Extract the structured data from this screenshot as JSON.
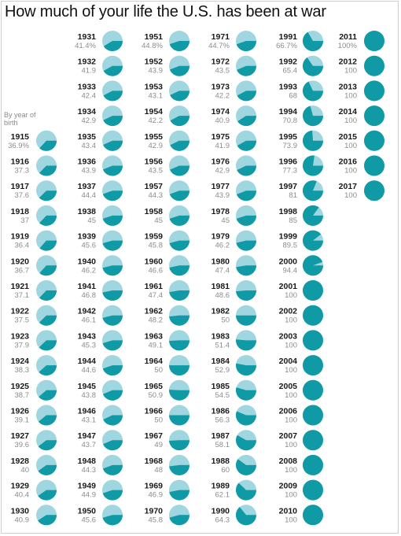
{
  "title": "How much of your life the U.S. has been at war",
  "note": "By year of birth",
  "colors": {
    "war": "#0f9aa5",
    "peace": "#9fd6e0"
  },
  "chart_data": {
    "type": "pie-grid",
    "title": "How much of your life the U.S. has been at war",
    "note": "By year of birth",
    "columns": [
      [
        {
          "year": "1915",
          "label": "36.9%",
          "value": 36.9
        },
        {
          "year": "1916",
          "label": "37.3",
          "value": 37.3
        },
        {
          "year": "1917",
          "label": "37.6",
          "value": 37.6
        },
        {
          "year": "1918",
          "label": "37",
          "value": 37
        },
        {
          "year": "1919",
          "label": "36.4",
          "value": 36.4
        },
        {
          "year": "1920",
          "label": "36.7",
          "value": 36.7
        },
        {
          "year": "1921",
          "label": "37.1",
          "value": 37.1
        },
        {
          "year": "1922",
          "label": "37.5",
          "value": 37.5
        },
        {
          "year": "1923",
          "label": "37.9",
          "value": 37.9
        },
        {
          "year": "1924",
          "label": "38.3",
          "value": 38.3
        },
        {
          "year": "1925",
          "label": "38.7",
          "value": 38.7
        },
        {
          "year": "1926",
          "label": "39.1",
          "value": 39.1
        },
        {
          "year": "1927",
          "label": "39.6",
          "value": 39.6
        },
        {
          "year": "1928",
          "label": "40",
          "value": 40
        },
        {
          "year": "1929",
          "label": "40.4",
          "value": 40.4
        },
        {
          "year": "1930",
          "label": "40.9",
          "value": 40.9
        }
      ],
      [
        {
          "year": "1931",
          "label": "41.4%",
          "value": 41.4
        },
        {
          "year": "1932",
          "label": "41.9",
          "value": 41.9
        },
        {
          "year": "1933",
          "label": "42.4",
          "value": 42.4
        },
        {
          "year": "1934",
          "label": "42.9",
          "value": 42.9
        },
        {
          "year": "1935",
          "label": "43.4",
          "value": 43.4
        },
        {
          "year": "1936",
          "label": "43.9",
          "value": 43.9
        },
        {
          "year": "1937",
          "label": "44.4",
          "value": 44.4
        },
        {
          "year": "1938",
          "label": "45",
          "value": 45
        },
        {
          "year": "1939",
          "label": "45.6",
          "value": 45.6
        },
        {
          "year": "1940",
          "label": "46.2",
          "value": 46.2
        },
        {
          "year": "1941",
          "label": "46.8",
          "value": 46.8
        },
        {
          "year": "1942",
          "label": "46.1",
          "value": 46.1
        },
        {
          "year": "1943",
          "label": "45.3",
          "value": 45.3
        },
        {
          "year": "1944",
          "label": "44.6",
          "value": 44.6
        },
        {
          "year": "1945",
          "label": "43.8",
          "value": 43.8
        },
        {
          "year": "1946",
          "label": "43.1",
          "value": 43.1
        },
        {
          "year": "1947",
          "label": "43.7",
          "value": 43.7
        },
        {
          "year": "1948",
          "label": "44.3",
          "value": 44.3
        },
        {
          "year": "1949",
          "label": "44.9",
          "value": 44.9
        },
        {
          "year": "1950",
          "label": "45.6",
          "value": 45.6
        }
      ],
      [
        {
          "year": "1951",
          "label": "44.8%",
          "value": 44.8
        },
        {
          "year": "1952",
          "label": "43.9",
          "value": 43.9
        },
        {
          "year": "1953",
          "label": "43.1",
          "value": 43.1
        },
        {
          "year": "1954",
          "label": "42.2",
          "value": 42.2
        },
        {
          "year": "1955",
          "label": "42.9",
          "value": 42.9
        },
        {
          "year": "1956",
          "label": "43.5",
          "value": 43.5
        },
        {
          "year": "1957",
          "label": "44.3",
          "value": 44.3
        },
        {
          "year": "1958",
          "label": "45",
          "value": 45
        },
        {
          "year": "1959",
          "label": "45.8",
          "value": 45.8
        },
        {
          "year": "1960",
          "label": "46.6",
          "value": 46.6
        },
        {
          "year": "1961",
          "label": "47.4",
          "value": 47.4
        },
        {
          "year": "1962",
          "label": "48.2",
          "value": 48.2
        },
        {
          "year": "1963",
          "label": "49.1",
          "value": 49.1
        },
        {
          "year": "1964",
          "label": "50",
          "value": 50
        },
        {
          "year": "1965",
          "label": "50.9",
          "value": 50.9
        },
        {
          "year": "1966",
          "label": "50",
          "value": 50
        },
        {
          "year": "1967",
          "label": "49",
          "value": 49
        },
        {
          "year": "1968",
          "label": "48",
          "value": 48
        },
        {
          "year": "1969",
          "label": "46.9",
          "value": 46.9
        },
        {
          "year": "1970",
          "label": "45.8",
          "value": 45.8
        }
      ],
      [
        {
          "year": "1971",
          "label": "44.7%",
          "value": 44.7
        },
        {
          "year": "1972",
          "label": "43.5",
          "value": 43.5
        },
        {
          "year": "1973",
          "label": "42.2",
          "value": 42.2
        },
        {
          "year": "1974",
          "label": "40.9",
          "value": 40.9
        },
        {
          "year": "1975",
          "label": "41.9",
          "value": 41.9
        },
        {
          "year": "1976",
          "label": "42.9",
          "value": 42.9
        },
        {
          "year": "1977",
          "label": "43.9",
          "value": 43.9
        },
        {
          "year": "1978",
          "label": "45",
          "value": 45
        },
        {
          "year": "1979",
          "label": "46.2",
          "value": 46.2
        },
        {
          "year": "1980",
          "label": "47.4",
          "value": 47.4
        },
        {
          "year": "1981",
          "label": "48.6",
          "value": 48.6
        },
        {
          "year": "1982",
          "label": "50",
          "value": 50
        },
        {
          "year": "1983",
          "label": "51.4",
          "value": 51.4
        },
        {
          "year": "1984",
          "label": "52.9",
          "value": 52.9
        },
        {
          "year": "1985",
          "label": "54.5",
          "value": 54.5
        },
        {
          "year": "1986",
          "label": "56.3",
          "value": 56.3
        },
        {
          "year": "1987",
          "label": "58.1",
          "value": 58.1
        },
        {
          "year": "1988",
          "label": "60",
          "value": 60
        },
        {
          "year": "1989",
          "label": "62.1",
          "value": 62.1
        },
        {
          "year": "1990",
          "label": "64.3",
          "value": 64.3
        }
      ],
      [
        {
          "year": "1991",
          "label": "66.7%",
          "value": 66.7
        },
        {
          "year": "1992",
          "label": "65.4",
          "value": 65.4
        },
        {
          "year": "1993",
          "label": "68",
          "value": 68
        },
        {
          "year": "1994",
          "label": "70.8",
          "value": 70.8
        },
        {
          "year": "1995",
          "label": "73.9",
          "value": 73.9
        },
        {
          "year": "1996",
          "label": "77.3",
          "value": 77.3
        },
        {
          "year": "1997",
          "label": "81",
          "value": 81
        },
        {
          "year": "1998",
          "label": "85",
          "value": 85
        },
        {
          "year": "1999",
          "label": "89.5",
          "value": 89.5
        },
        {
          "year": "2000",
          "label": "94.4",
          "value": 94.4
        },
        {
          "year": "2001",
          "label": "100",
          "value": 100
        },
        {
          "year": "2002",
          "label": "100",
          "value": 100
        },
        {
          "year": "2003",
          "label": "100",
          "value": 100
        },
        {
          "year": "2004",
          "label": "100",
          "value": 100
        },
        {
          "year": "2005",
          "label": "100",
          "value": 100
        },
        {
          "year": "2006",
          "label": "100",
          "value": 100
        },
        {
          "year": "2007",
          "label": "100",
          "value": 100
        },
        {
          "year": "2008",
          "label": "100",
          "value": 100
        },
        {
          "year": "2009",
          "label": "100",
          "value": 100
        },
        {
          "year": "2010",
          "label": "100",
          "value": 100
        }
      ],
      [
        {
          "year": "2011",
          "label": "100%",
          "value": 100
        },
        {
          "year": "2012",
          "label": "100",
          "value": 100
        },
        {
          "year": "2013",
          "label": "100",
          "value": 100
        },
        {
          "year": "2014",
          "label": "100",
          "value": 100
        },
        {
          "year": "2015",
          "label": "100",
          "value": 100
        },
        {
          "year": "2016",
          "label": "100",
          "value": 100
        },
        {
          "year": "2017",
          "label": "100",
          "value": 100
        }
      ]
    ]
  }
}
